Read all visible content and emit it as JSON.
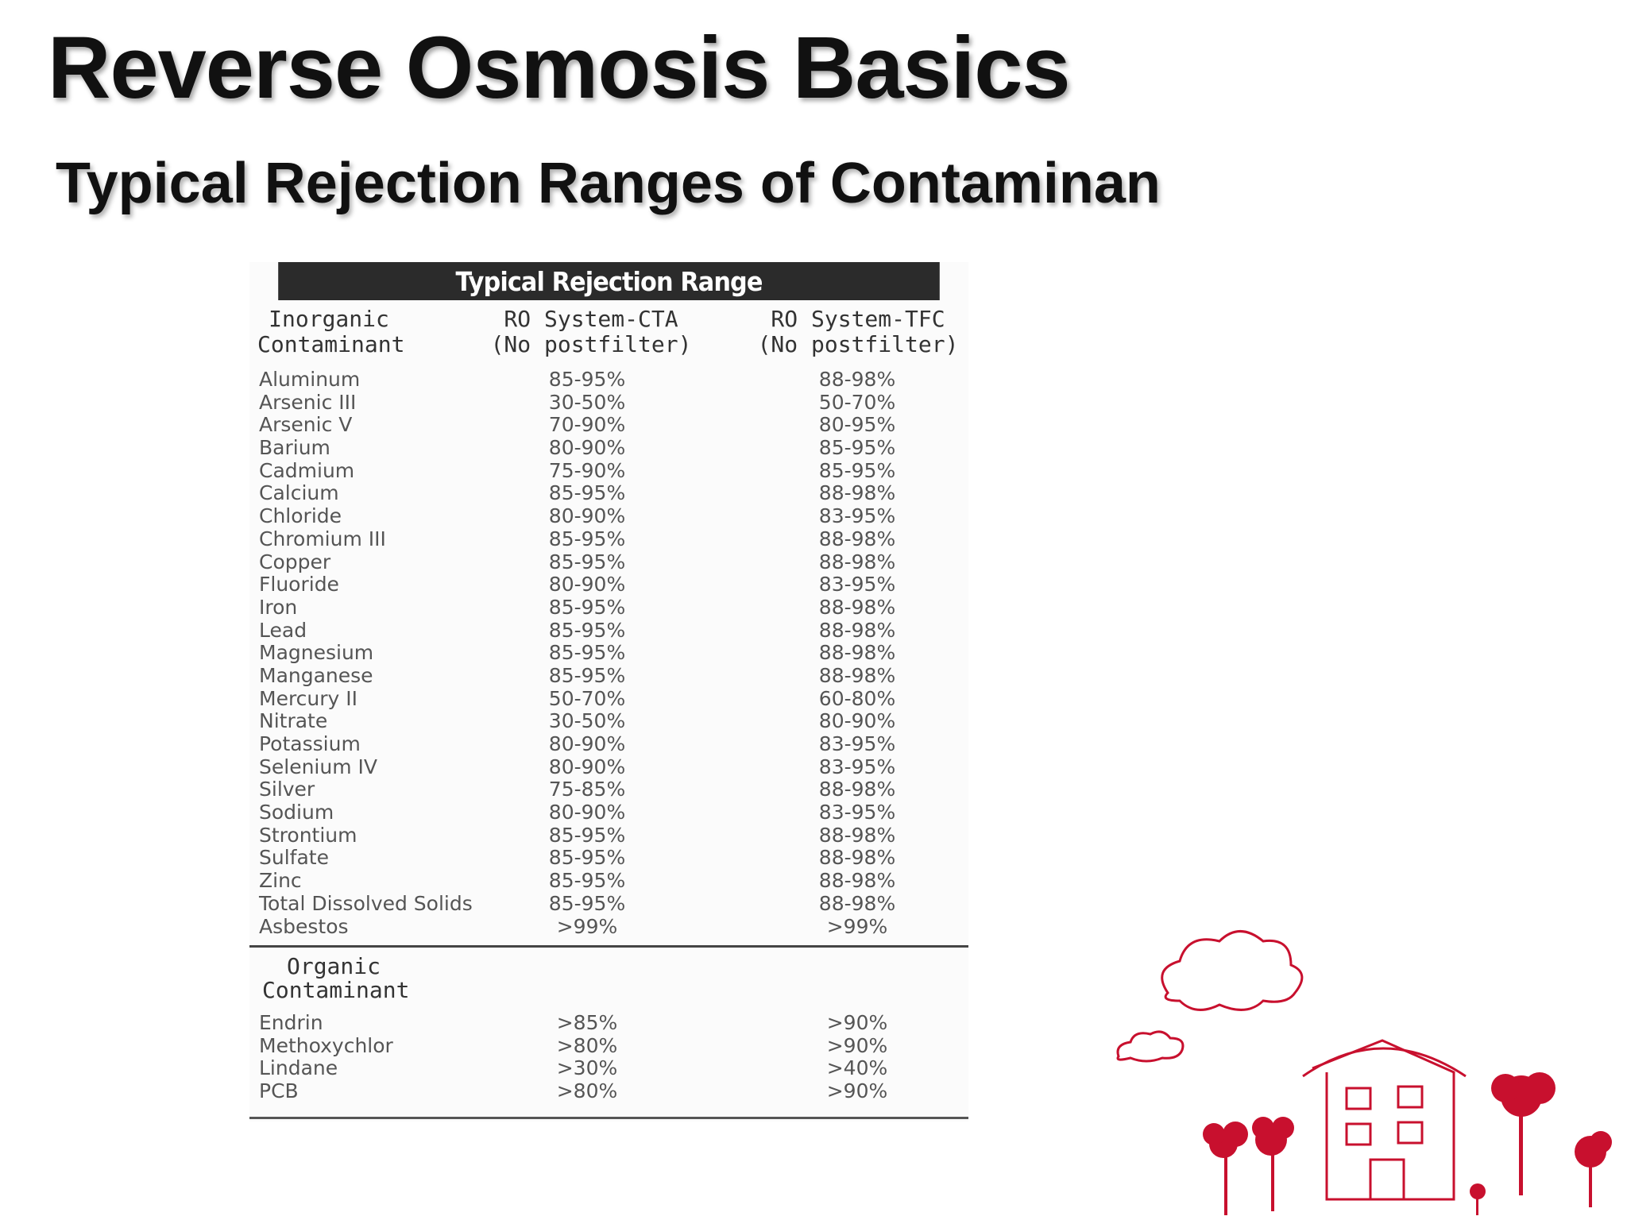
{
  "slide": {
    "title": "Reverse Osmosis Basics",
    "subtitle": "Typical Rejection Ranges of Contaminan"
  },
  "table": {
    "banner": "Typical Rejection Range",
    "headers": {
      "inorganic_line1": "Inorganic",
      "inorganic_line2": "Contaminant",
      "cta_line1": "RO System-CTA",
      "cta_line2": "(No postfilter)",
      "tfc_line1": "RO System-TFC",
      "tfc_line2": "(No postfilter)"
    },
    "inorganic_rows": [
      {
        "name": "Aluminum",
        "cta": "85-95%",
        "tfc": "88-98%"
      },
      {
        "name": "Arsenic III",
        "cta": "30-50%",
        "tfc": "50-70%"
      },
      {
        "name": "Arsenic V",
        "cta": "70-90%",
        "tfc": "80-95%"
      },
      {
        "name": "Barium",
        "cta": "80-90%",
        "tfc": "85-95%"
      },
      {
        "name": "Cadmium",
        "cta": "75-90%",
        "tfc": "85-95%"
      },
      {
        "name": "Calcium",
        "cta": "85-95%",
        "tfc": "88-98%"
      },
      {
        "name": "Chloride",
        "cta": "80-90%",
        "tfc": "83-95%"
      },
      {
        "name": "Chromium III",
        "cta": "85-95%",
        "tfc": "88-98%"
      },
      {
        "name": "Copper",
        "cta": "85-95%",
        "tfc": "88-98%"
      },
      {
        "name": "Fluoride",
        "cta": "80-90%",
        "tfc": "83-95%"
      },
      {
        "name": "Iron",
        "cta": "85-95%",
        "tfc": "88-98%"
      },
      {
        "name": "Lead",
        "cta": "85-95%",
        "tfc": "88-98%"
      },
      {
        "name": "Magnesium",
        "cta": "85-95%",
        "tfc": "88-98%"
      },
      {
        "name": "Manganese",
        "cta": "85-95%",
        "tfc": "88-98%"
      },
      {
        "name": "Mercury II",
        "cta": "50-70%",
        "tfc": "60-80%"
      },
      {
        "name": "Nitrate",
        "cta": "30-50%",
        "tfc": "80-90%"
      },
      {
        "name": "Potassium",
        "cta": "80-90%",
        "tfc": "83-95%"
      },
      {
        "name": "Selenium IV",
        "cta": "80-90%",
        "tfc": "83-95%"
      },
      {
        "name": "Silver",
        "cta": "75-85%",
        "tfc": "88-98%"
      },
      {
        "name": "Sodium",
        "cta": "80-90%",
        "tfc": "83-95%"
      },
      {
        "name": "Strontium",
        "cta": "85-95%",
        "tfc": "88-98%"
      },
      {
        "name": "Sulfate",
        "cta": "85-95%",
        "tfc": "88-98%"
      },
      {
        "name": "Zinc",
        "cta": "85-95%",
        "tfc": "88-98%"
      },
      {
        "name": "Total Dissolved Solids",
        "cta": "85-95%",
        "tfc": "88-98%"
      },
      {
        "name": "Asbestos",
        "cta": ">99%",
        "tfc": ">99%"
      }
    ],
    "organic_headers": {
      "line1": "Organic",
      "line2": "Contaminant"
    },
    "organic_rows": [
      {
        "name": "Endrin",
        "cta": ">85%",
        "tfc": ">90%"
      },
      {
        "name": "Methoxychlor",
        "cta": ">80%",
        "tfc": ">90%"
      },
      {
        "name": "Lindane",
        "cta": ">30%",
        "tfc": ">40%"
      },
      {
        "name": "PCB",
        "cta": ">80%",
        "tfc": ">90%"
      }
    ]
  },
  "colors": {
    "banner_bg": "#2b2b2b",
    "decor_red": "#c8102e"
  }
}
